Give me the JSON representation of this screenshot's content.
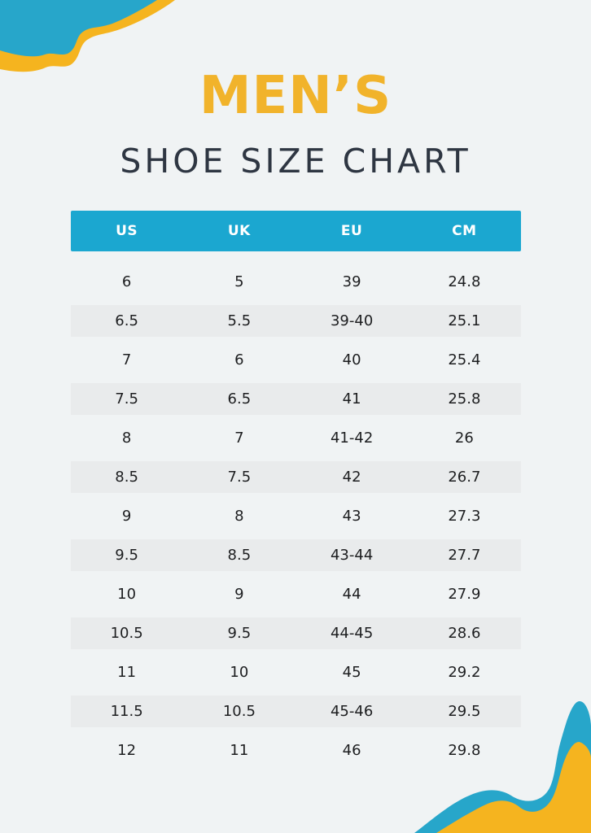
{
  "header": {
    "title_primary": "MEN’S",
    "title_secondary": "SHOE SIZE CHART"
  },
  "colors": {
    "page_bg": "#f0f3f4",
    "accent_yellow": "#f5b41f",
    "accent_blue": "#27a6ca",
    "table_header_bg": "#1ba7d0",
    "table_header_text": "#ffffff",
    "row_alt_bg": "#e9ebec",
    "title_primary_color": "#f1b32b",
    "title_secondary_color": "#2e3642",
    "cell_text": "#1d1e20"
  },
  "decorations": {
    "top_left": "yellow-and-blue-wave",
    "bottom_right": "blue-and-yellow-wave"
  },
  "chart_data": {
    "type": "table",
    "title": "MEN’S SHOE SIZE CHART",
    "columns": [
      "US",
      "UK",
      "EU",
      "CM"
    ],
    "rows": [
      [
        "6",
        "5",
        "39",
        "24.8"
      ],
      [
        "6.5",
        "5.5",
        "39-40",
        "25.1"
      ],
      [
        "7",
        "6",
        "40",
        "25.4"
      ],
      [
        "7.5",
        "6.5",
        "41",
        "25.8"
      ],
      [
        "8",
        "7",
        "41-42",
        "26"
      ],
      [
        "8.5",
        "7.5",
        "42",
        "26.7"
      ],
      [
        "9",
        "8",
        "43",
        "27.3"
      ],
      [
        "9.5",
        "8.5",
        "43-44",
        "27.7"
      ],
      [
        "10",
        "9",
        "44",
        "27.9"
      ],
      [
        "10.5",
        "9.5",
        "44-45",
        "28.6"
      ],
      [
        "11",
        "10",
        "45",
        "29.2"
      ],
      [
        "11.5",
        "10.5",
        "45-46",
        "29.5"
      ],
      [
        "12",
        "11",
        "46",
        "29.8"
      ]
    ]
  }
}
